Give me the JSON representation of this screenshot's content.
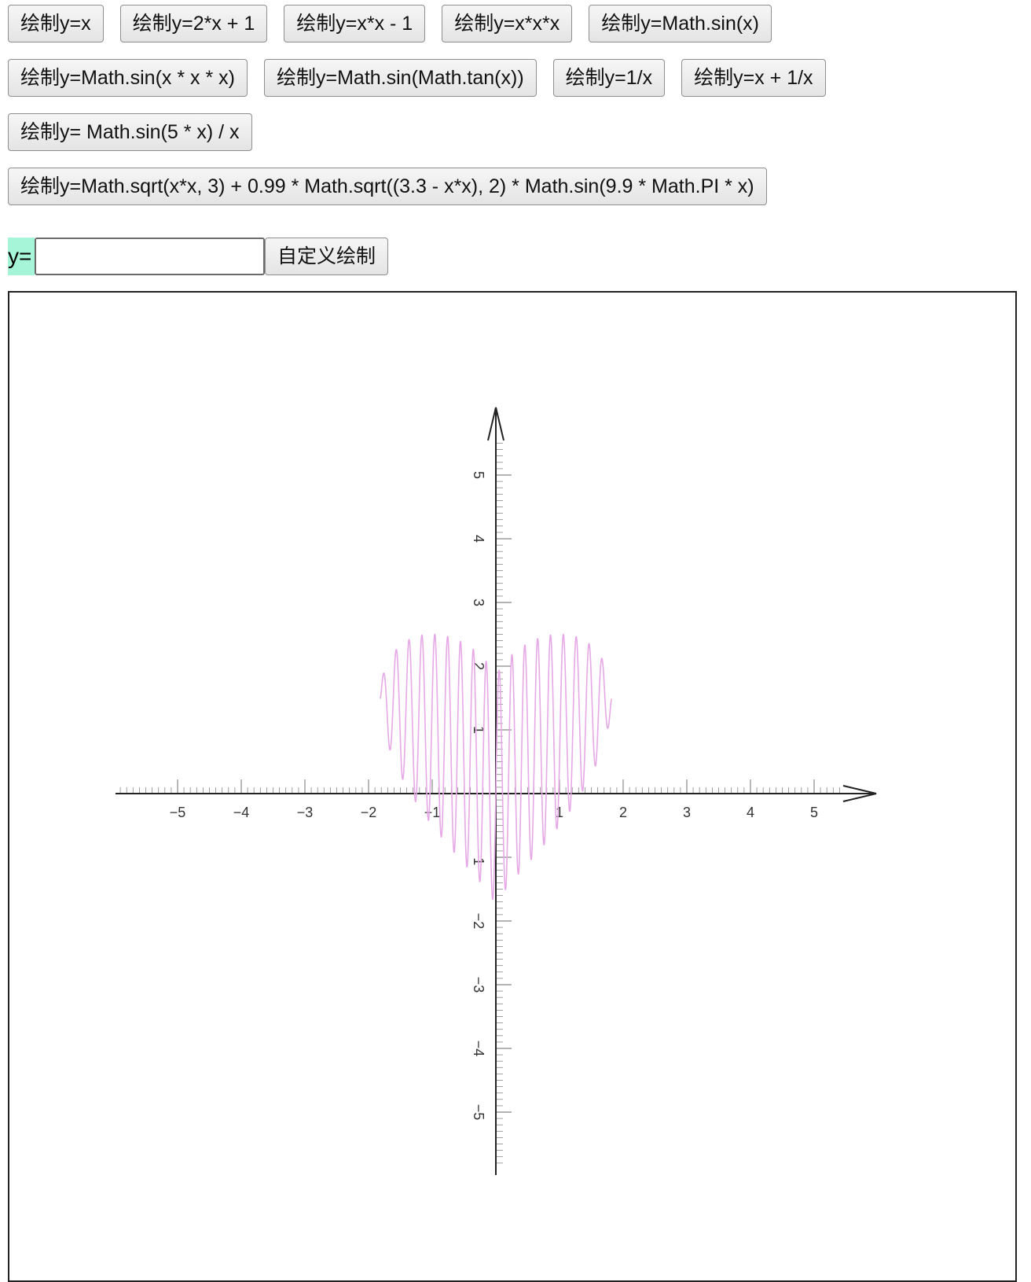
{
  "buttons": {
    "row1": [
      {
        "label": "绘制y=x"
      },
      {
        "label": "绘制y=2*x + 1"
      },
      {
        "label": "绘制y=x*x - 1"
      },
      {
        "label": "绘制y=x*x*x"
      },
      {
        "label": "绘制y=Math.sin(x)"
      }
    ],
    "row2": [
      {
        "label": "绘制y=Math.sin(x * x * x)"
      },
      {
        "label": "绘制y=Math.sin(Math.tan(x))"
      },
      {
        "label": "绘制y=1/x"
      },
      {
        "label": "绘制y=x + 1/x"
      }
    ],
    "row3": [
      {
        "label": "绘制y= Math.sin(5 * x) / x"
      }
    ],
    "row4": [
      {
        "label": "绘制y=Math.sqrt(x*x, 3) + 0.99 * Math.sqrt((3.3 - x*x), 2) * Math.sin(9.9 * Math.PI * x)"
      }
    ]
  },
  "custom": {
    "prefix": "y=",
    "input_value": "",
    "input_placeholder": "",
    "button_label": "自定义绘制"
  },
  "chart_data": {
    "type": "line",
    "function": "y = cbrt(x*x) + 0.99 * sqrt(3.3 - x*x) * sin(9.9 * PI * x)",
    "x_domain": [
      -1.8166,
      1.8166
    ],
    "xlim": [
      -6,
      6
    ],
    "ylim": [
      -6,
      6
    ],
    "x_ticks": [
      -5,
      -4,
      -3,
      -2,
      -1,
      1,
      2,
      3,
      4,
      5
    ],
    "y_ticks": [
      5,
      4,
      3,
      2,
      1,
      -1,
      -2,
      -3,
      -4,
      -5
    ],
    "x_tick_labels": [
      "−5",
      "−4",
      "−3",
      "−2",
      "−1",
      "1",
      "2",
      "3",
      "4",
      "5"
    ],
    "y_tick_labels": [
      "5",
      "4",
      "3",
      "2",
      "1",
      "−1",
      "−2",
      "−3",
      "−4",
      "−5"
    ],
    "minor_tick_step": 0.1,
    "series": [
      {
        "color": "#e6a8e6"
      }
    ],
    "axis_color": "#222222",
    "grid": false,
    "title": "",
    "xlabel": "",
    "ylabel": ""
  }
}
